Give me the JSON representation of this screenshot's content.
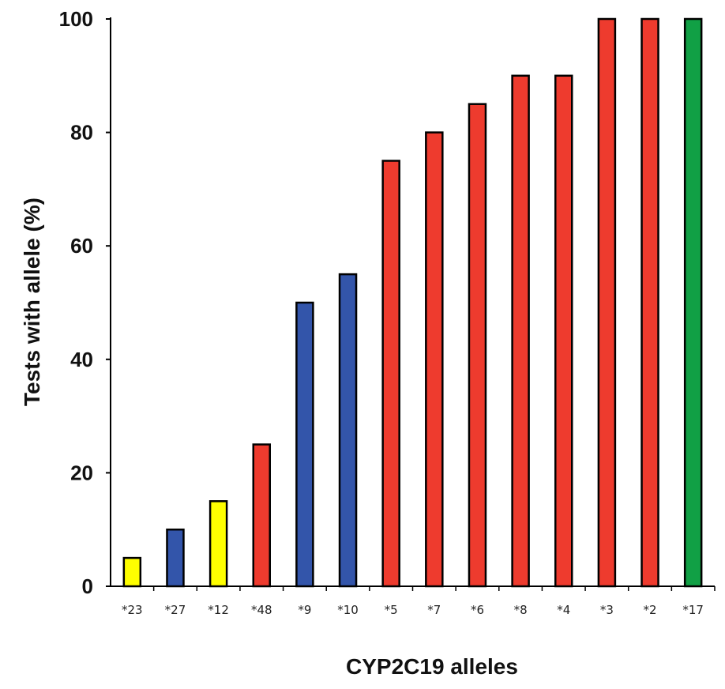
{
  "chart_data": {
    "type": "bar",
    "title": "",
    "xlabel": "CYP2C19 alleles",
    "ylabel": "Tests with allele (%)",
    "ylim": [
      0,
      100
    ],
    "yticks": [
      "0",
      "20",
      "40",
      "60",
      "80",
      "100"
    ],
    "grid": false,
    "categories": [
      "*23",
      "*27",
      "*12",
      "*48",
      "*9",
      "*10",
      "*5",
      "*7",
      "*6",
      "*8",
      "*4",
      "*3",
      "*2",
      "*17"
    ],
    "values": [
      5,
      10,
      15,
      25,
      50,
      55,
      75,
      80,
      85,
      90,
      90,
      100,
      100,
      100
    ],
    "bar_colors": [
      "#ffff00",
      "#3355aa",
      "#ffff00",
      "#ee3b2e",
      "#3355aa",
      "#3355aa",
      "#ee3b2e",
      "#ee3b2e",
      "#ee3b2e",
      "#ee3b2e",
      "#ee3b2e",
      "#ee3b2e",
      "#ee3b2e",
      "#11a045"
    ],
    "bar_outline_color": "#000000",
    "axis_color": "#000000"
  }
}
